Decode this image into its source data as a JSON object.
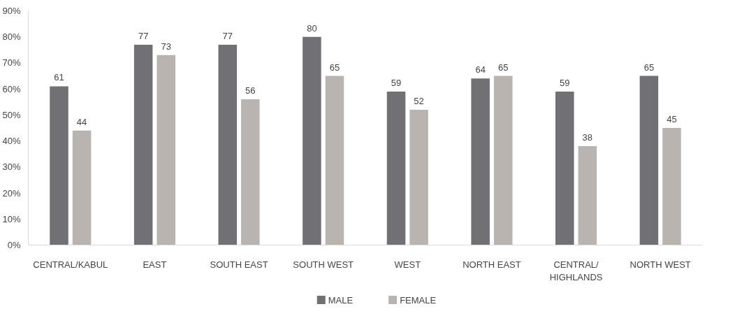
{
  "chart_data": {
    "type": "bar",
    "categories": [
      "CENTRAL/KABUL",
      "EAST",
      "SOUTH EAST",
      "SOUTH WEST",
      "WEST",
      "NORTH EAST",
      "CENTRAL/\nHIGHLANDS",
      "NORTH WEST"
    ],
    "series": [
      {
        "name": "MALE",
        "color": "#717175",
        "values": [
          61,
          77,
          77,
          80,
          59,
          64,
          59,
          65
        ]
      },
      {
        "name": "FEMALE",
        "color": "#b9b4af",
        "values": [
          44,
          73,
          56,
          65,
          52,
          65,
          38,
          45
        ]
      }
    ],
    "ylim": [
      0,
      90
    ],
    "yticks": [
      {
        "value": 0,
        "label": "0%"
      },
      {
        "value": 10,
        "label": "10%"
      },
      {
        "value": 20,
        "label": "20%"
      },
      {
        "value": 30,
        "label": "30%"
      },
      {
        "value": 40,
        "label": "40%"
      },
      {
        "value": 50,
        "label": "50%"
      },
      {
        "value": 60,
        "label": "60%"
      },
      {
        "value": 70,
        "label": "70%"
      },
      {
        "value": 80,
        "label": "80%"
      },
      {
        "value": 90,
        "label": "90%"
      }
    ],
    "data_labels": true,
    "grid": false,
    "legend": "bottom"
  }
}
